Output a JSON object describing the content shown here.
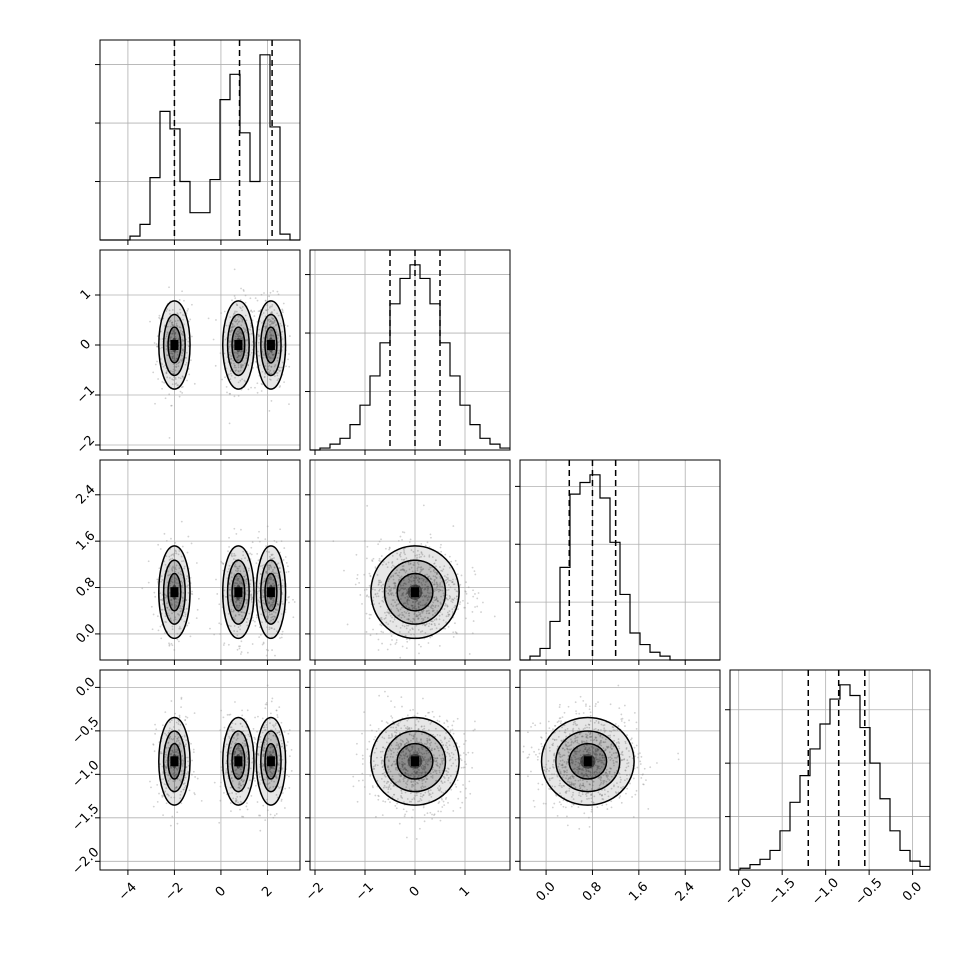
{
  "chart_data": {
    "type": "corner",
    "grid": true,
    "params": [
      {
        "range": [
          -5.2,
          3.4
        ],
        "ticks": [
          -4,
          -2,
          0,
          2
        ],
        "tick_labels": [
          "−4",
          "−2",
          "0",
          "2"
        ]
      },
      {
        "range": [
          -2.1,
          1.9
        ],
        "ticks": [
          -2,
          -1,
          0,
          1
        ],
        "tick_labels": [
          "−2",
          "−1",
          "0",
          "1"
        ]
      },
      {
        "range": [
          -0.45,
          3.0
        ],
        "ticks": [
          0.0,
          0.8,
          1.6,
          2.4
        ],
        "tick_labels": [
          "0.0",
          "0.8",
          "1.6",
          "2.4"
        ]
      },
      {
        "range": [
          -2.1,
          0.2
        ],
        "ticks": [
          -2.0,
          -1.5,
          -1.0,
          -0.5,
          0.0
        ],
        "tick_labels": [
          "−2.0",
          "−1.5",
          "−1.0",
          "−0.5",
          "0.0"
        ]
      }
    ],
    "histograms": [
      {
        "bins": [
          -5.2,
          -4.77,
          -4.34,
          -3.91,
          -3.48,
          -3.05,
          -2.62,
          -2.19,
          -1.76,
          -1.33,
          -0.9,
          -0.47,
          -0.04,
          0.39,
          0.82,
          1.25,
          1.68,
          2.11,
          2.54,
          2.97,
          3.4
        ],
        "counts": [
          0,
          0,
          0,
          2,
          8,
          32,
          66,
          57,
          30,
          14,
          14,
          31,
          72,
          85,
          55,
          30,
          95,
          58,
          3,
          0
        ],
        "quantiles": [
          -2.0,
          0.8,
          2.2
        ]
      },
      {
        "bins": [
          -2.1,
          -1.9,
          -1.7,
          -1.5,
          -1.3,
          -1.1,
          -0.9,
          -0.7,
          -0.5,
          -0.3,
          -0.1,
          0.1,
          0.3,
          0.5,
          0.7,
          0.9,
          1.1,
          1.3,
          1.5,
          1.7,
          1.9
        ],
        "counts": [
          0,
          1,
          3,
          6,
          13,
          23,
          38,
          55,
          75,
          88,
          95,
          88,
          75,
          55,
          38,
          23,
          13,
          6,
          3,
          1
        ],
        "quantiles": [
          -0.5,
          0.0,
          0.5
        ]
      },
      {
        "bins": [
          -0.45,
          -0.2775,
          -0.105,
          0.0675,
          0.24,
          0.4125,
          0.585,
          0.7575,
          0.93,
          1.1025,
          1.275,
          1.4475,
          1.62,
          1.7925,
          1.965,
          2.1375,
          2.31,
          2.4825,
          2.655,
          2.8275,
          3.0
        ],
        "counts": [
          0,
          2,
          6,
          20,
          48,
          86,
          92,
          96,
          84,
          61,
          34,
          14,
          8,
          4,
          2,
          0,
          0,
          0,
          0,
          0
        ],
        "quantiles": [
          0.4,
          0.8,
          1.2
        ]
      },
      {
        "bins": [
          -2.1,
          -1.985,
          -1.87,
          -1.755,
          -1.64,
          -1.525,
          -1.41,
          -1.295,
          -1.18,
          -1.065,
          -0.95,
          -0.835,
          -0.72,
          -0.605,
          -0.49,
          -0.375,
          -0.26,
          -0.145,
          -0.03,
          0.085,
          0.2
        ],
        "counts": [
          0,
          1,
          3,
          6,
          11,
          22,
          38,
          53,
          68,
          82,
          96,
          104,
          98,
          80,
          60,
          40,
          22,
          11,
          5,
          2
        ],
        "quantiles": [
          -1.2,
          -0.85,
          -0.55
        ]
      }
    ],
    "modes": [
      {
        "x0": -2.0,
        "sigma": 0.32,
        "weight": 0.33
      },
      {
        "x0": 0.75,
        "sigma": 0.32,
        "weight": 0.34
      },
      {
        "x0": 2.15,
        "sigma": 0.3,
        "weight": 0.33
      }
    ],
    "marginals": [
      {
        "mean": 0.0,
        "sd": 0.42
      },
      {
        "mean": 0.72,
        "sd": 0.38
      },
      {
        "mean": -0.85,
        "sd": 0.24
      }
    ]
  }
}
